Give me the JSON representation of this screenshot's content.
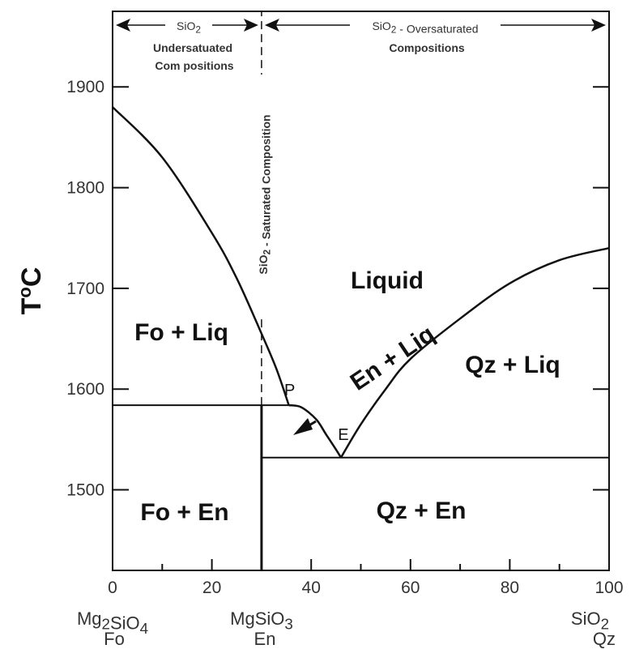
{
  "chart_data": {
    "type": "line",
    "title": "",
    "xlabel": "",
    "ylabel": "T°C",
    "xlim": [
      0,
      100
    ],
    "ylim": [
      1420,
      1975
    ],
    "x_ticks": [
      "0",
      "20",
      "40",
      "60",
      "80",
      "100"
    ],
    "y_ticks": [
      "1500",
      "1600",
      "1700",
      "1800",
      "1900"
    ],
    "endmembers": {
      "left": {
        "formula": "Mg₂SiO₄",
        "name": "Fo"
      },
      "middle": {
        "formula": "MgSiO₃",
        "name": "En"
      },
      "right": {
        "formula": "SiO₂",
        "name": "Qz"
      }
    },
    "series": [
      {
        "values": [
          [
            0,
            1880
          ],
          [
            10,
            1830
          ],
          [
            20,
            1755
          ],
          [
            25,
            1710
          ],
          [
            30,
            1655
          ],
          [
            33,
            1620
          ],
          [
            35.5,
            1584
          ]
        ]
      },
      {
        "values": [
          [
            35.5,
            1584
          ],
          [
            38,
            1582
          ],
          [
            41,
            1570
          ],
          [
            43,
            1555
          ],
          [
            45,
            1540
          ],
          [
            46,
            1532
          ]
        ]
      },
      {
        "values": [
          [
            46,
            1532
          ],
          [
            50,
            1565
          ],
          [
            55,
            1600
          ],
          [
            60,
            1630
          ],
          [
            70,
            1670
          ],
          [
            80,
            1705
          ],
          [
            90,
            1728
          ],
          [
            100,
            1740
          ]
        ]
      }
    ],
    "isotherms": [
      {
        "temperature": 1584,
        "x_range": [
          0,
          35.5
        ]
      },
      {
        "temperature": 1532,
        "x_range": [
          30,
          100
        ]
      }
    ],
    "points": [
      {
        "label": "P",
        "x": 35.5,
        "y": 1584
      },
      {
        "label": "E",
        "x": 46,
        "y": 1532
      }
    ],
    "fields": [
      "Liquid",
      "Fo + Liq",
      "Fo + En",
      "Qz + En",
      "En + Liq",
      "Qz + Liq"
    ],
    "header": {
      "under_top": "SiO₂",
      "under_line1": "Undersatuated",
      "under_line2": "Com positions",
      "over_top": "SiO₂ - Oversaturated",
      "over_line2": "Compositions",
      "saturated": "SiO₂ - Saturated Composition"
    }
  }
}
